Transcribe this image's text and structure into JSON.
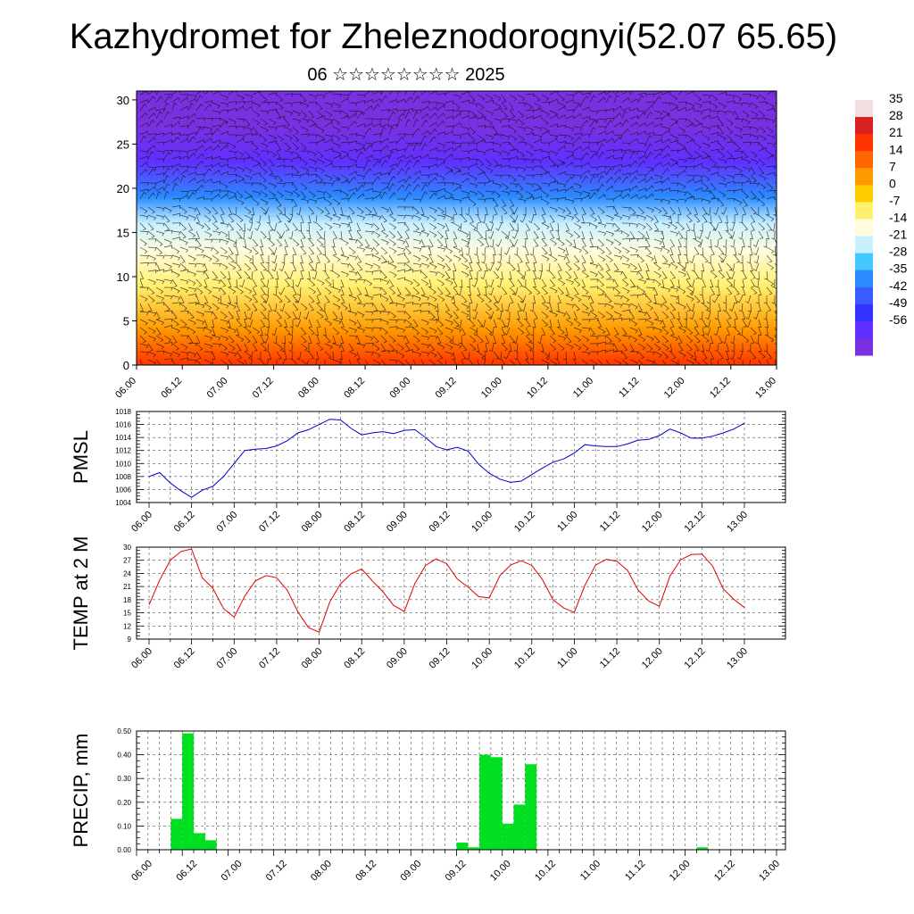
{
  "header": {
    "title": "Kazhydromet for Zheleznodorognyi(52.07 65.65)",
    "subtitle": "06 ☆☆☆☆☆☆☆☆ 2025"
  },
  "chart_data": [
    {
      "type": "heatmap",
      "title": "",
      "xlabel": "",
      "ylabel": "",
      "x_tick_labels": [
        "06.00",
        "06.12",
        "07.00",
        "07.12",
        "08.00",
        "08.12",
        "09.00",
        "09.12",
        "10.00",
        "10.12",
        "11.00",
        "11.12",
        "12.00",
        "12.12",
        "13.00"
      ],
      "y_ticks": [
        0,
        5,
        10,
        15,
        20,
        25,
        30
      ],
      "ylim": [
        0,
        31
      ],
      "colorbar": {
        "labels": [
          "35",
          "28",
          "21",
          "14",
          "7",
          "0",
          "-7",
          "-14",
          "-21",
          "-28",
          "-35",
          "-42",
          "-49",
          "-56"
        ],
        "colors": [
          "#f2dede",
          "#d92020",
          "#ff3300",
          "#ff6600",
          "#ff9900",
          "#ffcc00",
          "#fff070",
          "#fffce0",
          "#c8f0ff",
          "#44c8ff",
          "#2a8cff",
          "#3a5cff",
          "#3333ff",
          "#6030ff",
          "#7a30e0"
        ]
      },
      "temperature_bands": [
        {
          "height": 0,
          "temp": 28
        },
        {
          "height": 4,
          "temp": 17
        },
        {
          "height": 9,
          "temp": 3
        },
        {
          "height": 13,
          "temp": -9
        },
        {
          "height": 16,
          "temp": -17
        },
        {
          "height": 19,
          "temp": -30
        },
        {
          "height": 23,
          "temp": -46
        },
        {
          "height": 27,
          "temp": -54
        },
        {
          "height": 31,
          "temp": -58
        }
      ],
      "annotation": "wind barbs"
    },
    {
      "type": "line",
      "ylabel": "PMSL",
      "ylim": [
        1004,
        1018
      ],
      "y_ticks": [
        1004,
        1006,
        1008,
        1010,
        1012,
        1014,
        1016,
        1018
      ],
      "x_tick_labels": [
        "06.00",
        "06.12",
        "07.00",
        "07.12",
        "08.00",
        "08.12",
        "09.00",
        "09.12",
        "10.00",
        "10.12",
        "11.00",
        "11.12",
        "12.00",
        "12.12",
        "13.00"
      ],
      "color": "#0000cc",
      "x_hours": [
        0,
        3,
        6,
        9,
        12,
        15,
        18,
        21,
        24,
        27,
        30,
        33,
        36,
        39,
        42,
        45,
        48,
        51,
        54,
        57,
        60,
        63,
        66,
        69,
        72,
        75,
        78,
        81,
        84,
        87,
        90,
        93,
        96,
        99,
        102,
        105,
        108,
        111,
        114,
        117,
        120,
        123,
        126,
        129,
        132,
        135,
        138,
        141,
        144,
        147,
        150,
        153,
        156,
        159,
        162,
        165,
        168
      ],
      "values": [
        1008.0,
        1008.6,
        1007.0,
        1005.8,
        1004.8,
        1005.9,
        1006.5,
        1008.0,
        1010.0,
        1012.0,
        1012.2,
        1012.3,
        1012.7,
        1013.5,
        1014.7,
        1015.2,
        1016.0,
        1016.8,
        1016.7,
        1015.4,
        1014.4,
        1014.7,
        1014.9,
        1014.6,
        1015.1,
        1015.2,
        1014.0,
        1012.6,
        1012.1,
        1012.5,
        1011.9,
        1009.9,
        1008.5,
        1007.6,
        1007.1,
        1007.3,
        1008.3,
        1009.3,
        1010.2,
        1010.7,
        1011.6,
        1012.9,
        1012.7,
        1012.6,
        1012.6,
        1013.0,
        1013.6,
        1013.7,
        1014.3,
        1015.3,
        1014.7,
        1013.9,
        1013.9,
        1014.2,
        1014.7,
        1015.3,
        1016.2
      ]
    },
    {
      "type": "line",
      "ylabel": "TEMP at 2 M",
      "ylim": [
        9,
        30
      ],
      "y_ticks": [
        9,
        12,
        15,
        18,
        21,
        24,
        27,
        30
      ],
      "x_tick_labels": [
        "06.00",
        "06.12",
        "07.00",
        "07.12",
        "08.00",
        "08.12",
        "09.00",
        "09.12",
        "10.00",
        "10.12",
        "11.00",
        "11.12",
        "12.00",
        "12.12",
        "13.00"
      ],
      "color": "#e00000",
      "x_hours": [
        0,
        3,
        6,
        9,
        12,
        15,
        18,
        21,
        24,
        27,
        30,
        33,
        36,
        39,
        42,
        45,
        48,
        51,
        54,
        57,
        60,
        63,
        66,
        69,
        72,
        75,
        78,
        81,
        84,
        87,
        90,
        93,
        96,
        99,
        102,
        105,
        108,
        111,
        114,
        117,
        120,
        123,
        126,
        129,
        132,
        135,
        138,
        141,
        144,
        147,
        150,
        153,
        156,
        159,
        162,
        165,
        168
      ],
      "values": [
        16.8,
        22.5,
        27.0,
        29.0,
        29.6,
        23.0,
        20.6,
        16.0,
        14.0,
        18.8,
        22.3,
        23.5,
        23.0,
        20.2,
        15.2,
        11.6,
        10.6,
        17.5,
        21.6,
        23.9,
        25.0,
        22.3,
        19.8,
        16.7,
        15.3,
        21.7,
        25.8,
        27.3,
        26.2,
        22.7,
        20.9,
        18.7,
        18.4,
        23.5,
        25.9,
        26.9,
        25.8,
        22.6,
        18.0,
        16.1,
        15.1,
        21.3,
        25.9,
        27.2,
        26.8,
        24.7,
        20.2,
        17.7,
        16.5,
        23.4,
        27.1,
        28.3,
        28.4,
        25.7,
        20.5,
        18.1,
        16.2
      ]
    },
    {
      "type": "bar",
      "ylabel": "PRECIP, mm",
      "ylim": [
        0,
        0.5
      ],
      "y_tick_labels": [
        "0.00",
        "0.10",
        "0.20",
        "0.30",
        "0.40",
        "0.50"
      ],
      "x_tick_labels": [
        "06.00",
        "06.12",
        "07.00",
        "07.12",
        "08.00",
        "08.12",
        "09.00",
        "09.12",
        "10.00",
        "10.12",
        "11.00",
        "11.12",
        "12.00",
        "12.12",
        "13.00"
      ],
      "color": "#00e020",
      "bar_width_hours": 3,
      "bars": [
        {
          "start_hour": 9,
          "value": 0.13
        },
        {
          "start_hour": 12,
          "value": 0.49
        },
        {
          "start_hour": 15,
          "value": 0.07
        },
        {
          "start_hour": 18,
          "value": 0.04
        },
        {
          "start_hour": 84,
          "value": 0.03
        },
        {
          "start_hour": 87,
          "value": 0.01
        },
        {
          "start_hour": 90,
          "value": 0.4
        },
        {
          "start_hour": 93,
          "value": 0.39
        },
        {
          "start_hour": 96,
          "value": 0.11
        },
        {
          "start_hour": 99,
          "value": 0.19
        },
        {
          "start_hour": 102,
          "value": 0.36
        },
        {
          "start_hour": 147,
          "value": 0.01
        }
      ]
    }
  ]
}
